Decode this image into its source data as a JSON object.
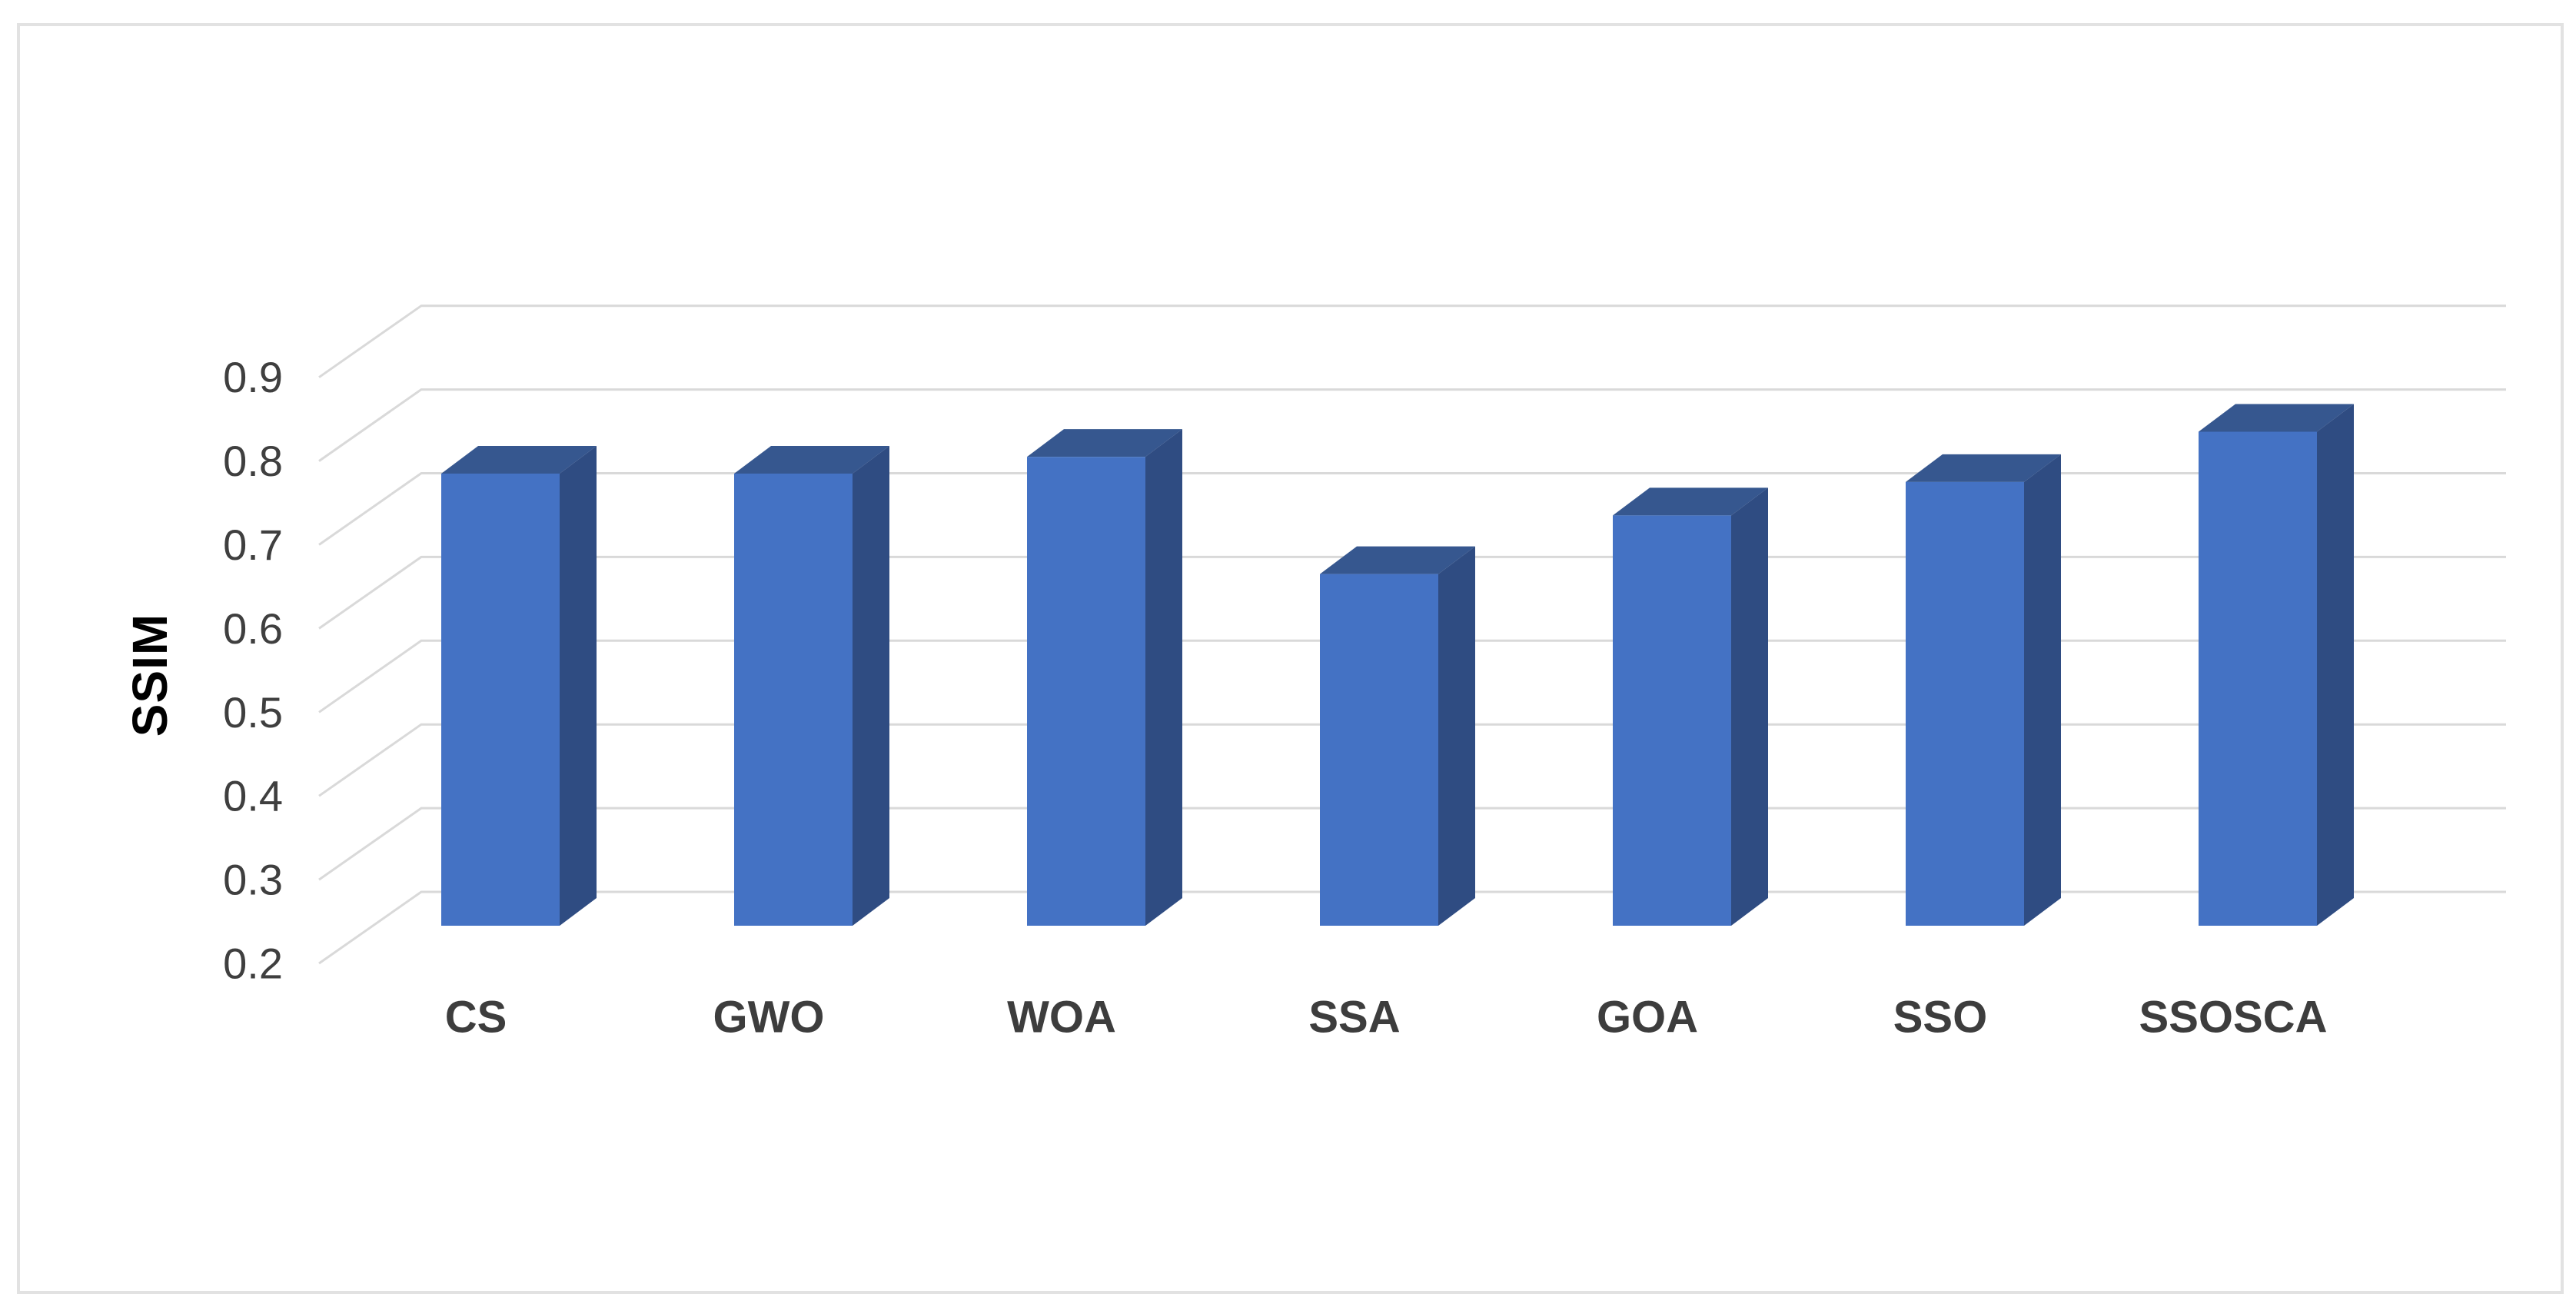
{
  "chart_data": {
    "type": "bar",
    "projection": "3d-oblique",
    "title": "",
    "ylabel": "SSIM",
    "xlabel": "",
    "categories": [
      "CS",
      "GWO",
      "WOA",
      "SSA",
      "GOA",
      "SSO",
      "SSOSCA"
    ],
    "values": [
      0.74,
      0.74,
      0.76,
      0.62,
      0.69,
      0.73,
      0.79
    ],
    "ylim": [
      0.2,
      0.9
    ],
    "ytick_labels": [
      "0.9",
      "0.8",
      "0.7",
      "0.6",
      "0.5",
      "0.4",
      "0.3",
      "0.2"
    ],
    "grid": true,
    "legend": false,
    "colors": {
      "bar_front": "#4472c4",
      "bar_top": "#36578f",
      "bar_side": "#2f4c82",
      "gridline": "#d9d9d9",
      "frame": "#e2e2e2",
      "tick_text": "#3f3f3f",
      "category_text": "#3d3d3d",
      "ylabel_text": "#000000",
      "background": "#ffffff"
    }
  }
}
